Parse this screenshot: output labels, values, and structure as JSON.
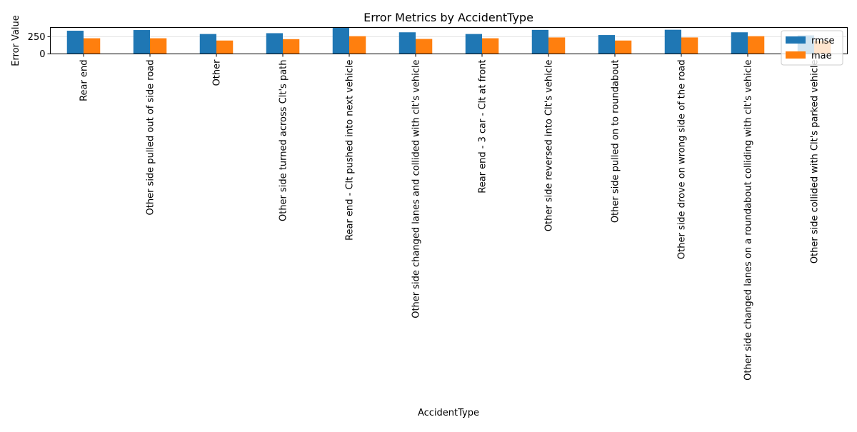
{
  "chart_data": {
    "type": "bar",
    "title": "Error Metrics by AccidentType",
    "xlabel": "AccidentType",
    "ylabel": "Error Value",
    "ylim": [
      0,
      385
    ],
    "yticks": [
      0,
      250
    ],
    "grid": true,
    "legend_position": "top-right",
    "categories": [
      "Rear end",
      "Other side pulled out of side road",
      "Other",
      "Other side turned across Clt's path",
      "Rear end - Clt pushed into next vehicle",
      "Other side changed lanes and collided with clt's vehicle",
      "Rear end - 3 car - Clt at front",
      "Other side reversed into Clt's vehicle",
      "Other side pulled on to roundabout",
      "Other side drove on wrong side of the road",
      "Other side changed lanes on a roundabout colliding with clt's vehicle",
      "Other side collided with Clt's parked vehicle"
    ],
    "series": [
      {
        "name": "rmse",
        "color": "#1f77b4",
        "values": [
          338,
          348,
          290,
          302,
          380,
          315,
          290,
          350,
          275,
          352,
          315,
          270
        ]
      },
      {
        "name": "mae",
        "color": "#ff7f0e",
        "values": [
          228,
          228,
          195,
          215,
          258,
          218,
          228,
          240,
          195,
          240,
          258,
          190
        ]
      }
    ]
  }
}
